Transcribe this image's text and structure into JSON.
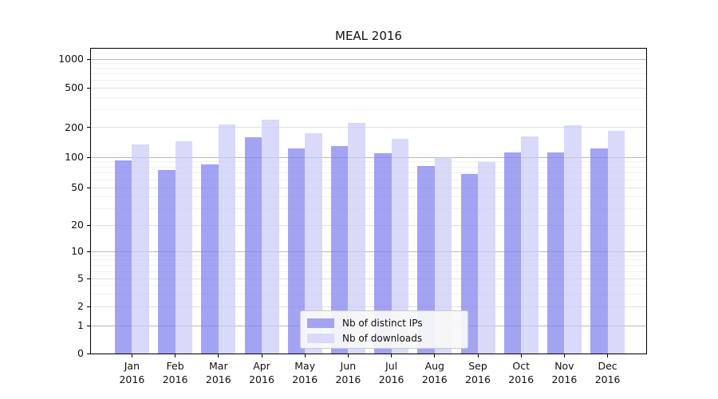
{
  "chart_data": {
    "type": "bar",
    "title": "MEAL 2016",
    "categories": [
      "Jan 2016",
      "Feb 2016",
      "Mar 2016",
      "Apr 2016",
      "May 2016",
      "Jun 2016",
      "Jul 2016",
      "Aug 2016",
      "Sep 2016",
      "Oct 2016",
      "Nov 2016",
      "Dec 2016"
    ],
    "month_labels": [
      "Jan",
      "Feb",
      "Mar",
      "Apr",
      "May",
      "Jun",
      "Jul",
      "Aug",
      "Sep",
      "Oct",
      "Nov",
      "Dec"
    ],
    "year_label": "2016",
    "series": [
      {
        "name": "Nb of distinct IPs",
        "color": "#a3a3f4",
        "fill": "rgba(127,127,240,0.72)",
        "values": [
          93,
          75,
          85,
          158,
          122,
          130,
          110,
          82,
          68,
          112,
          112,
          123
        ]
      },
      {
        "name": "Nb of downloads",
        "color": "#d9d9f9",
        "fill": "rgba(202,202,248,0.72)",
        "values": [
          135,
          145,
          215,
          240,
          175,
          220,
          152,
          100,
          90,
          163,
          210,
          185
        ]
      }
    ],
    "yticks": [
      0,
      1,
      2,
      5,
      10,
      20,
      50,
      100,
      200,
      500,
      1000
    ],
    "yscale": "log-like (symlog: linear below 1, logarithmic above)",
    "ylim": [
      0,
      1200
    ],
    "xlabel": "",
    "ylabel": "",
    "grid": true,
    "legend_position": "lower center"
  }
}
